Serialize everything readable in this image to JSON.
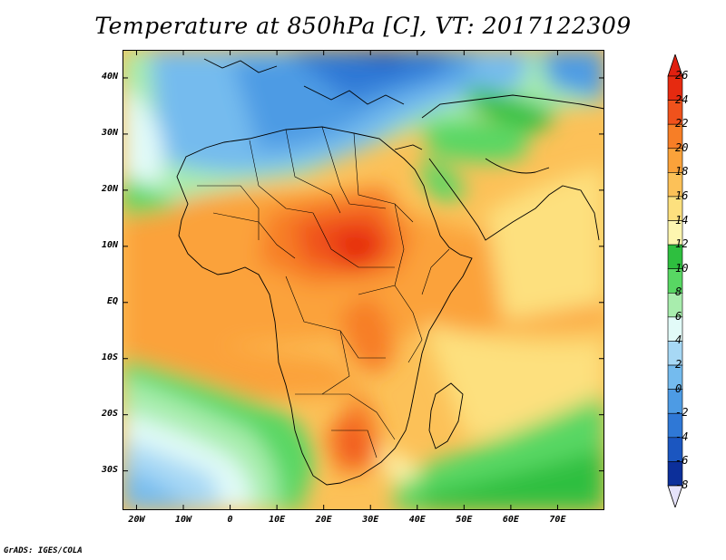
{
  "title": "Temperature at 850hPa [C], VT: 2017122309",
  "credit": "GrADS: IGES/COLA",
  "map": {
    "region": "Africa",
    "lon_range": [
      -23,
      80
    ],
    "lat_range": [
      -37,
      45
    ],
    "lat_ticks": [
      {
        "value": 40,
        "label": "40N"
      },
      {
        "value": 30,
        "label": "30N"
      },
      {
        "value": 20,
        "label": "20N"
      },
      {
        "value": 10,
        "label": "10N"
      },
      {
        "value": 0,
        "label": "EQ"
      },
      {
        "value": -10,
        "label": "10S"
      },
      {
        "value": -20,
        "label": "20S"
      },
      {
        "value": -30,
        "label": "30S"
      }
    ],
    "lon_ticks": [
      {
        "value": -20,
        "label": "20W"
      },
      {
        "value": -10,
        "label": "10W"
      },
      {
        "value": 0,
        "label": "0"
      },
      {
        "value": 10,
        "label": "10E"
      },
      {
        "value": 20,
        "label": "20E"
      },
      {
        "value": 30,
        "label": "30E"
      },
      {
        "value": 40,
        "label": "40E"
      },
      {
        "value": 50,
        "label": "50E"
      },
      {
        "value": 60,
        "label": "60E"
      },
      {
        "value": 70,
        "label": "70E"
      }
    ]
  },
  "colorbar": {
    "levels": [
      {
        "label": "26",
        "color": "#e62a10"
      },
      {
        "label": "24",
        "color": "#f0521c"
      },
      {
        "label": "22",
        "color": "#f77e26"
      },
      {
        "label": "20",
        "color": "#fba23a"
      },
      {
        "label": "18",
        "color": "#fcc158"
      },
      {
        "label": "16",
        "color": "#fde07e"
      },
      {
        "label": "14",
        "color": "#fdf6b0"
      },
      {
        "label": "12",
        "color": "#2ebf3f"
      },
      {
        "label": "10",
        "color": "#58d763"
      },
      {
        "label": "8",
        "color": "#a8edad"
      },
      {
        "label": "6",
        "color": "#e2fbf8"
      },
      {
        "label": "4",
        "color": "#a7d8f5"
      },
      {
        "label": "2",
        "color": "#74bbee"
      },
      {
        "label": "0",
        "color": "#4d9be4"
      },
      {
        "label": "-2",
        "color": "#2f78d6"
      },
      {
        "label": "-4",
        "color": "#1b56c0"
      },
      {
        "label": "-6",
        "color": "#0c2f9a"
      },
      {
        "label": "-8",
        "color": "#081a64"
      }
    ],
    "top_arrow_color": "#e02010",
    "bottom_arrow_color": "#e6e3fb"
  }
}
